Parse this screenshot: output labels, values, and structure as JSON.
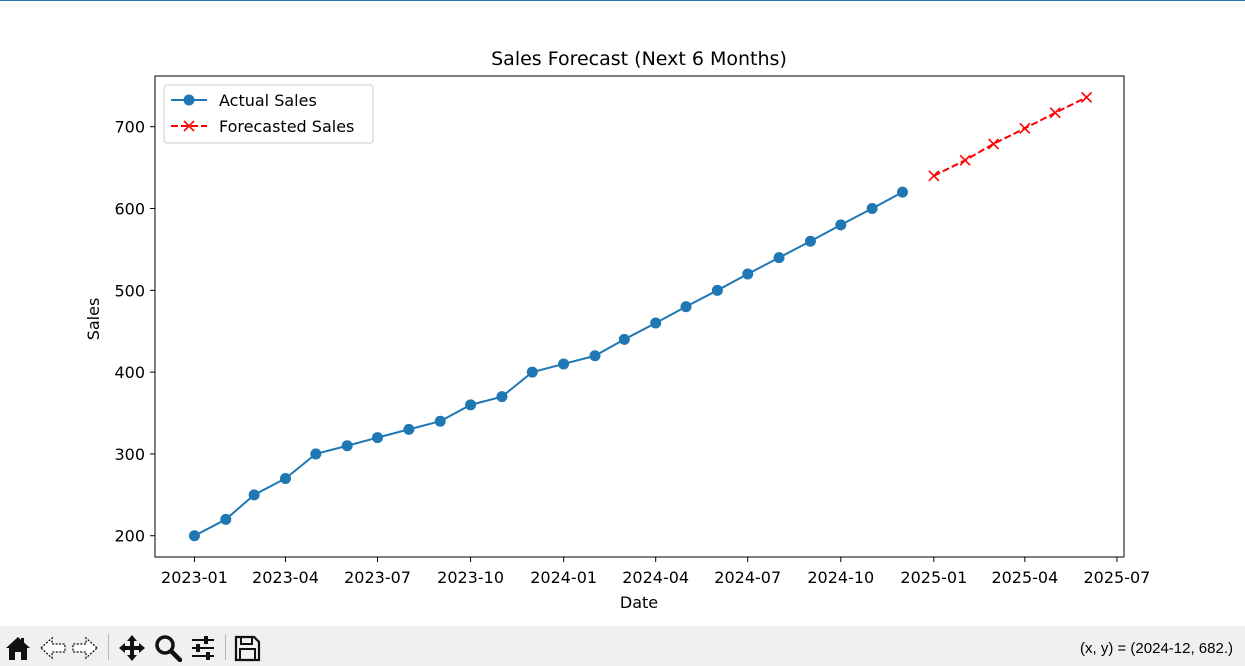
{
  "chart_data": {
    "type": "line",
    "title": "Sales Forecast (Next 6 Months)",
    "xlabel": "Date",
    "ylabel": "Sales",
    "xlim": [
      "2022-11-23",
      "2025-07-08"
    ],
    "ylim": [
      174,
      762
    ],
    "x_ticks": [
      "2023-01",
      "2023-04",
      "2023-07",
      "2023-10",
      "2024-01",
      "2024-04",
      "2024-07",
      "2024-10",
      "2025-01",
      "2025-04",
      "2025-07"
    ],
    "y_ticks": [
      200,
      300,
      400,
      500,
      600,
      700
    ],
    "grid": false,
    "legend_position": "upper left",
    "series": [
      {
        "name": "Actual Sales",
        "color": "#1f77b4",
        "style": "solid",
        "marker": "circle",
        "x": [
          "2023-01-01",
          "2023-02-01",
          "2023-03-01",
          "2023-04-01",
          "2023-05-01",
          "2023-06-01",
          "2023-07-01",
          "2023-08-01",
          "2023-09-01",
          "2023-10-01",
          "2023-11-01",
          "2023-12-01",
          "2024-01-01",
          "2024-02-01",
          "2024-03-01",
          "2024-04-01",
          "2024-05-01",
          "2024-06-01",
          "2024-07-01",
          "2024-08-01",
          "2024-09-01",
          "2024-10-01",
          "2024-11-01",
          "2024-12-01"
        ],
        "y": [
          200,
          220,
          250,
          270,
          300,
          310,
          320,
          330,
          340,
          360,
          370,
          400,
          410,
          420,
          440,
          460,
          480,
          500,
          520,
          540,
          560,
          580,
          600,
          620
        ]
      },
      {
        "name": "Forecasted Sales",
        "color": "#ff0000",
        "style": "dashed",
        "marker": "x",
        "x": [
          "2025-01-01",
          "2025-02-01",
          "2025-03-01",
          "2025-04-01",
          "2025-05-01",
          "2025-06-01"
        ],
        "y": [
          640,
          659,
          679,
          698,
          717,
          736
        ]
      }
    ]
  },
  "toolbar": {
    "buttons": [
      {
        "name": "home-button",
        "icon": "home-icon"
      },
      {
        "name": "back-button",
        "icon": "back-arrow-icon"
      },
      {
        "name": "forward-button",
        "icon": "forward-arrow-icon"
      },
      {
        "name": "pan-button",
        "icon": "move-icon"
      },
      {
        "name": "zoom-button",
        "icon": "magnifier-icon"
      },
      {
        "name": "configure-subplots-button",
        "icon": "sliders-icon"
      },
      {
        "name": "save-button",
        "icon": "floppy-disk-icon"
      }
    ],
    "coords_text": "(x, y) = (2024-12, 682.)"
  }
}
